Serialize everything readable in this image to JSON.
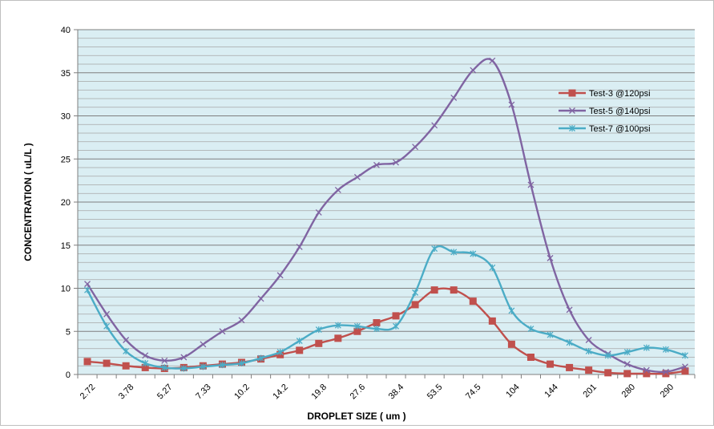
{
  "chart_data": {
    "type": "line",
    "title": "",
    "xlabel": "DROPLET SIZE ( um )",
    "ylabel": "CONCENTRATION ( uL/L )",
    "ylim": [
      0,
      40
    ],
    "y_major_ticks": [
      0,
      5,
      10,
      15,
      20,
      25,
      30,
      35,
      40
    ],
    "y_minor_step": 1,
    "grid": true,
    "legend_position": "right",
    "plot_background": "#daeef3",
    "x_tick_labels": [
      "2.72",
      "3.78",
      "5.27",
      "7.33",
      "10.2",
      "14.2",
      "19.8",
      "27.6",
      "38.4",
      "53.5",
      "74.5",
      "104",
      "144",
      "201",
      "280",
      "290"
    ],
    "x_point_count": 32,
    "series": [
      {
        "name": "Test-3 @120psi",
        "color": "#c0504d",
        "marker": "square",
        "values": [
          1.5,
          1.3,
          1.0,
          0.8,
          0.7,
          0.8,
          1.0,
          1.2,
          1.4,
          1.8,
          2.3,
          2.8,
          3.6,
          4.2,
          5.0,
          6.0,
          6.8,
          8.1,
          9.8,
          9.8,
          8.5,
          6.2,
          3.5,
          2.0,
          1.2,
          0.8,
          0.5,
          0.2,
          0.1,
          0.1,
          0.1,
          0.4
        ]
      },
      {
        "name": "Test-5 @140psi",
        "color": "#8064a2",
        "marker": "x",
        "values": [
          10.5,
          7.0,
          4.0,
          2.2,
          1.6,
          2.0,
          3.5,
          5.0,
          6.3,
          8.8,
          11.5,
          14.8,
          18.8,
          21.4,
          22.9,
          24.3,
          24.6,
          26.4,
          28.9,
          32.1,
          35.3,
          36.4,
          31.3,
          22.0,
          13.5,
          7.5,
          4.0,
          2.4,
          1.2,
          0.5,
          0.3,
          0.9
        ]
      },
      {
        "name": "Test-7 @100psi",
        "color": "#4bacc6",
        "marker": "asterisk",
        "values": [
          9.8,
          5.6,
          2.7,
          1.3,
          0.8,
          0.7,
          0.9,
          1.1,
          1.3,
          1.9,
          2.6,
          3.9,
          5.2,
          5.7,
          5.6,
          5.3,
          5.6,
          9.5,
          14.6,
          14.2,
          14.0,
          12.4,
          7.4,
          5.3,
          4.6,
          3.7,
          2.7,
          2.2,
          2.6,
          3.1,
          2.9,
          2.2
        ]
      }
    ]
  }
}
